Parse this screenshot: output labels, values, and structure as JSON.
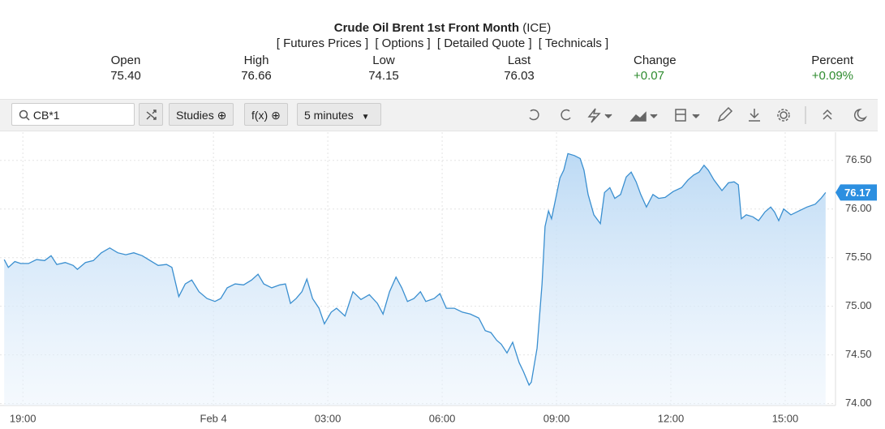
{
  "header": {
    "title": "Crude Oil Brent 1st Front Month",
    "exchange": "(ICE)",
    "links": [
      "[ Futures Prices ]",
      "[ Options ]",
      "[ Detailed Quote ]",
      "[ Technicals ]"
    ],
    "stats": [
      {
        "label": "Open",
        "value": "75.40"
      },
      {
        "label": "High",
        "value": "76.66"
      },
      {
        "label": "Low",
        "value": "74.15"
      },
      {
        "label": "Last",
        "value": "76.03"
      },
      {
        "label": "Change",
        "value": "+0.07"
      },
      {
        "label": "Percent",
        "value": "+0.09%"
      }
    ]
  },
  "toolbar": {
    "symbol": "CB*1",
    "studies": "Studies",
    "fx": "f(x)",
    "interval": "5 minutes"
  },
  "chart_data": {
    "type": "line",
    "color": "#3a8fd0",
    "grid": true,
    "x": [
      18.51,
      18.62,
      18.79,
      18.94,
      19.15,
      19.36,
      19.57,
      19.74,
      19.89,
      20.11,
      20.32,
      20.43,
      20.64,
      20.85,
      21.06,
      21.28,
      21.49,
      21.7,
      21.91,
      22.13,
      22.34,
      22.55,
      22.77,
      22.91,
      23.09,
      23.26,
      23.43,
      23.62,
      23.83,
      24.04,
      24.19,
      24.36,
      24.57,
      24.79,
      25.0,
      25.17,
      25.32,
      25.53,
      25.74,
      25.89,
      26.02,
      26.17,
      26.32,
      26.45,
      26.6,
      26.77,
      26.91,
      27.09,
      27.23,
      27.45,
      27.66,
      27.87,
      28.09,
      28.3,
      28.45,
      28.62,
      28.79,
      28.94,
      29.09,
      29.26,
      29.43,
      29.57,
      29.79,
      29.94,
      30.11,
      30.32,
      30.53,
      30.74,
      30.96,
      31.13,
      31.28,
      31.43,
      31.55,
      31.7,
      31.85,
      32.02,
      32.13,
      32.28,
      32.34,
      32.49,
      32.62,
      32.7,
      32.79,
      32.87,
      32.98,
      33.09,
      33.19,
      33.3,
      33.47,
      33.62,
      33.72,
      33.83,
      33.98,
      34.15,
      34.26,
      34.4,
      34.53,
      34.68,
      34.83,
      34.96,
      35.09,
      35.21,
      35.36,
      35.53,
      35.68,
      35.85,
      36.06,
      36.28,
      36.45,
      36.6,
      36.74,
      36.87,
      36.98,
      37.13,
      37.34,
      37.51,
      37.66,
      37.77,
      37.85,
      37.98,
      38.15,
      38.3,
      38.47,
      38.62,
      38.72,
      38.83,
      38.96,
      39.15,
      39.36,
      39.57,
      39.79,
      39.94,
      40.06
    ],
    "values": [
      75.48,
      75.4,
      75.46,
      75.44,
      75.44,
      75.48,
      75.47,
      75.52,
      75.43,
      75.45,
      75.42,
      75.38,
      75.45,
      75.47,
      75.55,
      75.6,
      75.55,
      75.53,
      75.55,
      75.52,
      75.47,
      75.42,
      75.43,
      75.4,
      75.1,
      75.23,
      75.27,
      75.15,
      75.08,
      75.05,
      75.08,
      75.19,
      75.23,
      75.22,
      75.27,
      75.33,
      75.23,
      75.19,
      75.22,
      75.23,
      75.03,
      75.08,
      75.15,
      75.28,
      75.08,
      74.98,
      74.82,
      74.94,
      74.98,
      74.9,
      75.15,
      75.07,
      75.12,
      75.03,
      74.92,
      75.15,
      75.3,
      75.19,
      75.05,
      75.08,
      75.15,
      75.05,
      75.08,
      75.13,
      74.98,
      74.98,
      74.94,
      74.92,
      74.88,
      74.75,
      74.73,
      74.65,
      74.61,
      74.52,
      74.63,
      74.42,
      74.33,
      74.19,
      74.22,
      74.57,
      75.23,
      75.82,
      75.98,
      75.9,
      76.11,
      76.32,
      76.4,
      76.57,
      76.55,
      76.52,
      76.4,
      76.15,
      75.94,
      75.85,
      76.17,
      76.22,
      76.11,
      76.15,
      76.33,
      76.38,
      76.28,
      76.15,
      76.02,
      76.15,
      76.11,
      76.12,
      76.18,
      76.22,
      76.3,
      76.35,
      76.38,
      76.45,
      76.4,
      76.3,
      76.19,
      76.27,
      76.28,
      76.25,
      75.9,
      75.94,
      75.92,
      75.88,
      75.97,
      76.02,
      75.97,
      75.88,
      76.0,
      75.94,
      75.98,
      76.02,
      76.05,
      76.11,
      76.17
    ],
    "xlim": [
      18.4,
      40.32
    ],
    "xticks": [
      {
        "value": 19,
        "label": "19:00"
      },
      {
        "value": 24,
        "label": "Feb 4"
      },
      {
        "value": 27,
        "label": "03:00"
      },
      {
        "value": 30,
        "label": "06:00"
      },
      {
        "value": 33,
        "label": "09:00"
      },
      {
        "value": 36,
        "label": "12:00"
      },
      {
        "value": 39,
        "label": "15:00"
      }
    ],
    "ylim": [
      73.98,
      76.79
    ],
    "yticks": [
      {
        "value": 74,
        "label": "74.00"
      },
      {
        "value": 74.5,
        "label": "74.50"
      },
      {
        "value": 75,
        "label": "75.00"
      },
      {
        "value": 75.5,
        "label": "75.50"
      },
      {
        "value": 76,
        "label": "76.00"
      },
      {
        "value": 76.5,
        "label": "76.50"
      }
    ]
  }
}
